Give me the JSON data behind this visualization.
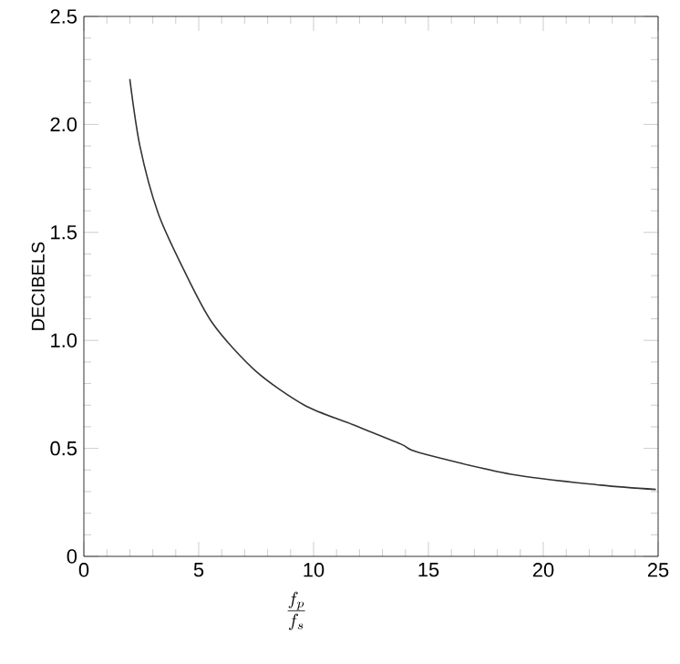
{
  "chart_data": {
    "type": "line",
    "xlabel": "\\frac{f_p}{f_s}",
    "ylabel": "DECIBELS",
    "x": [
      2.0,
      2.44,
      3.23,
      4.29,
      5.6,
      7.46,
      9.6,
      11.7,
      13.8,
      14.6,
      18.6,
      22.5,
      24.9
    ],
    "values": [
      2.21,
      1.9,
      1.59,
      1.34,
      1.08,
      0.86,
      0.7,
      0.61,
      0.52,
      0.48,
      0.38,
      0.33,
      0.31
    ],
    "color": "#333333",
    "xlim": [
      0,
      25
    ],
    "ylim": [
      0,
      2.5
    ],
    "xticks": [
      0,
      5,
      10,
      15,
      20,
      25
    ],
    "yticks": [
      0,
      0.5,
      {
        "value": 1.0,
        "label": "1.0"
      },
      1.5,
      {
        "value": 2.0,
        "label": "2.0"
      },
      2.5
    ],
    "grid": false,
    "marker": "none",
    "line_style": "solid"
  }
}
